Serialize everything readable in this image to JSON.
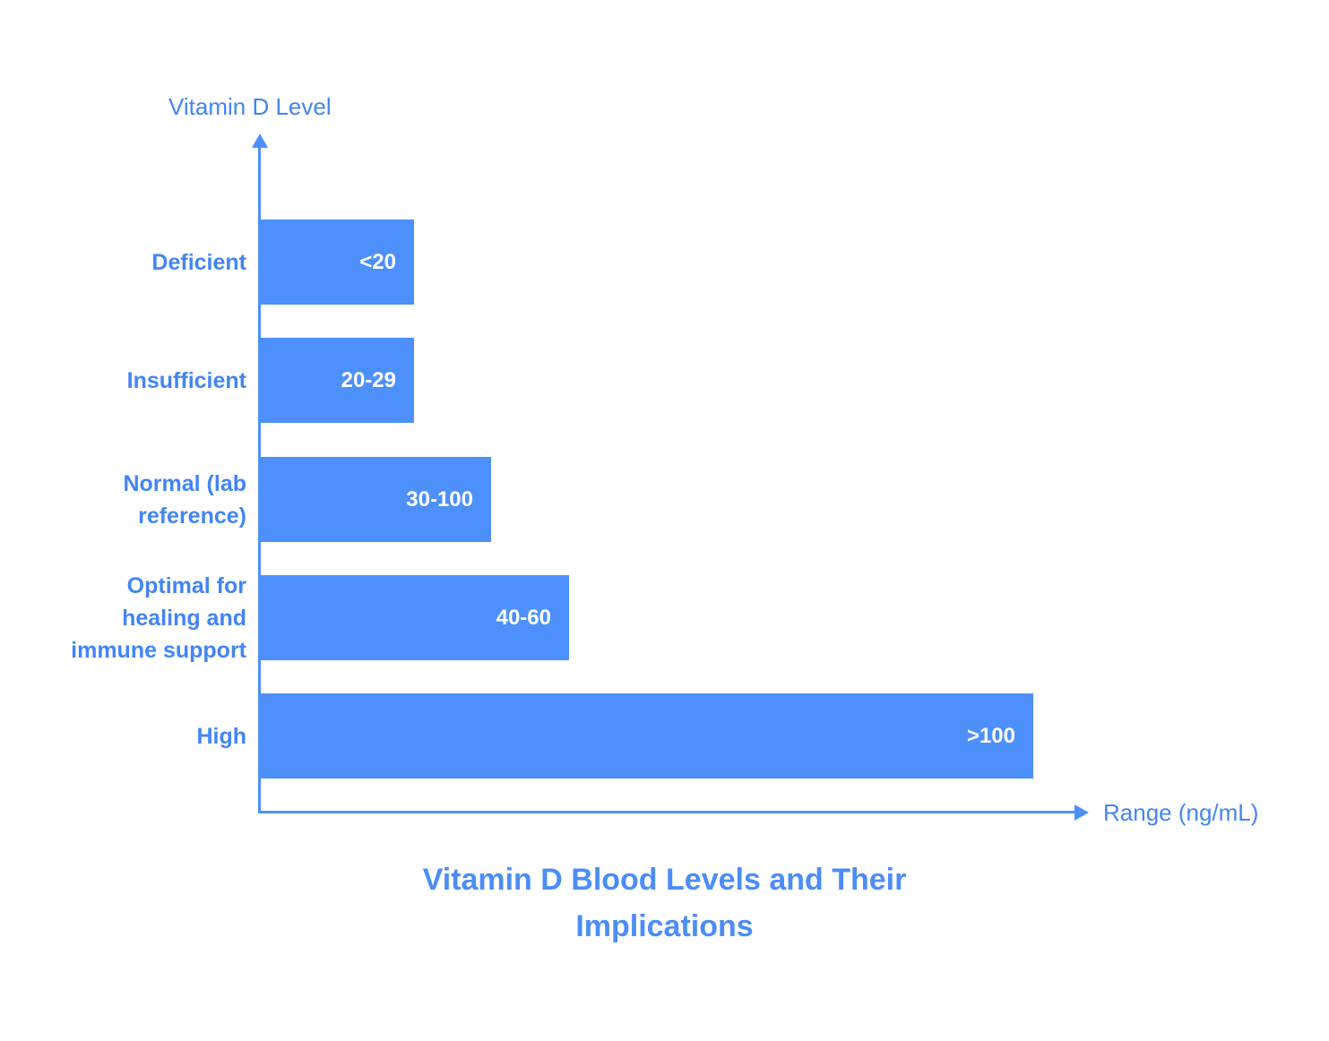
{
  "colors": {
    "bar_fill": "#4d90fb",
    "label_text": "#4285f4",
    "title_text": "#4c8df5",
    "value_text": "#ffffff",
    "background": "#ffffff"
  },
  "title_display": "Vitamin D Blood Levels and Their\nImplications",
  "chart_data": {
    "type": "bar",
    "orientation": "horizontal",
    "title": "Vitamin D Blood Levels and Their Implications",
    "xlabel": "Range (ng/mL)",
    "ylabel": "Vitamin D Level",
    "categories": [
      "Deficient",
      "Insufficient",
      "Normal (lab reference)",
      "Optimal for healing and immune support",
      "High"
    ],
    "values": [
      "<20",
      "20-29",
      "30-100",
      "40-60",
      ">100"
    ],
    "relative_bar_lengths": [
      2,
      2,
      3,
      4,
      10
    ],
    "grid": false,
    "legend": false,
    "rows": [
      {
        "label": "Deficient",
        "value": "<20",
        "bar_px": "172px"
      },
      {
        "label": "Insufficient",
        "value": "20-29",
        "bar_px": "172px"
      },
      {
        "label": "Normal (lab\nreference)",
        "value": "30-100",
        "bar_px": "258px"
      },
      {
        "label": "Optimal for\nhealing and\nimmune support",
        "value": "40-60",
        "bar_px": "345px"
      },
      {
        "label": "High",
        "value": ">100",
        "bar_px": "863px"
      }
    ]
  }
}
